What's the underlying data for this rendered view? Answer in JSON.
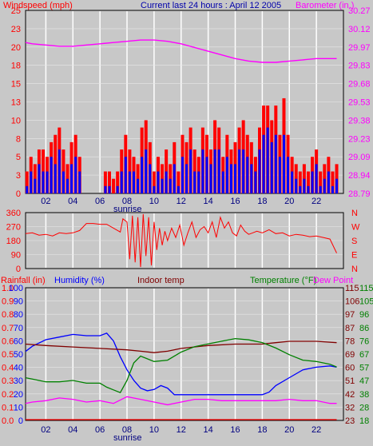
{
  "header": {
    "left_label": "Windspeed (mph)",
    "center_label": "Current last 24 hours : April 12 2005",
    "right_label": "Barometer (in.)"
  },
  "bottom_header": {
    "rainfall_label": "Rainfall (in)",
    "humidity_label": "Humidity (%)",
    "indoor_label": "Indoor temp",
    "temperature_label": "Temperature (°F)",
    "dewpoint_label": "Dew Point"
  },
  "x_axis": {
    "hour_ticks": [
      "02",
      "04",
      "06",
      "08",
      "10",
      "12",
      "14",
      "16",
      "18",
      "20",
      "22"
    ],
    "sunrise_label": "sunrise"
  },
  "colors": {
    "background": "#c8c8c8",
    "wind_avg": "#0000ff",
    "wind_gust": "#ff0000",
    "barometer": "#ff00ff",
    "direction": "#ff0000",
    "humidity": "#0000ff",
    "indoor": "#800000",
    "temperature": "#008000",
    "dewpoint": "#ff00ff",
    "rain": "#ff0000"
  },
  "chart_data": [
    {
      "type": "bar",
      "name_id": "wind-barometer",
      "x_unit": "hour",
      "xlim": [
        0.5,
        24
      ],
      "y_left": {
        "label": "Windspeed (mph)",
        "ticks": [
          "0",
          "3",
          "5",
          "8",
          "10",
          "13",
          "15",
          "18",
          "20",
          "23",
          "25"
        ],
        "ylim": [
          0,
          25
        ]
      },
      "y_right": {
        "label": "Barometer (in.)",
        "ticks": [
          "28.79",
          "28.94",
          "29.09",
          "29.23",
          "29.38",
          "29.53",
          "29.68",
          "29.83",
          "29.97",
          "30.12",
          "30.27"
        ],
        "ylim": [
          28.79,
          30.27
        ]
      },
      "series": [
        {
          "name": "gust",
          "hours": [
            0.6,
            0.9,
            1.2,
            1.5,
            1.8,
            2.1,
            2.4,
            2.7,
            3.0,
            3.3,
            3.6,
            3.9,
            4.2,
            4.5,
            6.4,
            6.7,
            7.0,
            7.3,
            7.6,
            7.9,
            8.2,
            8.5,
            8.8,
            9.1,
            9.4,
            9.7,
            10.0,
            10.3,
            10.6,
            10.9,
            11.2,
            11.5,
            11.8,
            12.1,
            12.4,
            12.7,
            13.0,
            13.3,
            13.6,
            13.9,
            14.2,
            14.5,
            14.8,
            15.1,
            15.4,
            15.7,
            16.0,
            16.3,
            16.6,
            16.9,
            17.2,
            17.5,
            17.8,
            18.1,
            18.4,
            18.7,
            19.0,
            19.3,
            19.6,
            19.9,
            20.2,
            20.5,
            20.8,
            21.1,
            21.4,
            21.7,
            22.0,
            22.3,
            22.6,
            22.9,
            23.2,
            23.5
          ],
          "values": [
            3,
            5,
            4,
            6,
            6,
            5,
            7,
            8,
            9,
            6,
            4,
            7,
            8,
            5,
            3,
            3,
            2,
            3,
            6,
            8,
            6,
            5,
            4,
            9,
            10,
            7,
            3,
            5,
            4,
            6,
            4,
            7,
            3,
            8,
            7,
            9,
            6,
            5,
            9,
            8,
            6,
            10,
            9,
            5,
            8,
            6,
            7,
            9,
            10,
            8,
            7,
            5,
            9,
            12,
            12,
            10,
            12,
            8,
            13,
            8,
            5,
            4,
            3,
            4,
            3,
            5,
            6,
            3,
            4,
            5,
            3,
            4
          ]
        },
        {
          "name": "average",
          "hours": [
            0.6,
            0.9,
            1.2,
            1.5,
            1.8,
            2.1,
            2.4,
            2.7,
            3.0,
            3.3,
            3.6,
            3.9,
            4.2,
            4.5,
            6.4,
            6.7,
            7.0,
            7.3,
            7.6,
            7.9,
            8.2,
            8.5,
            8.8,
            9.1,
            9.4,
            9.7,
            10.0,
            10.3,
            10.6,
            10.9,
            11.2,
            11.5,
            11.8,
            12.1,
            12.4,
            12.7,
            13.0,
            13.3,
            13.6,
            13.9,
            14.2,
            14.5,
            14.8,
            15.1,
            15.4,
            15.7,
            16.0,
            16.3,
            16.6,
            16.9,
            17.2,
            17.5,
            17.8,
            18.1,
            18.4,
            18.7,
            19.0,
            19.3,
            19.6,
            19.9,
            20.2,
            20.5,
            20.8,
            21.1,
            21.4,
            21.7,
            22.0,
            22.3,
            22.6,
            22.9,
            23.2,
            23.5
          ],
          "values": [
            1,
            3,
            2,
            4,
            3,
            3,
            5,
            4,
            6,
            3,
            2,
            4,
            5,
            3,
            1,
            1,
            0,
            1,
            3,
            5,
            3,
            3,
            2,
            5,
            6,
            4,
            1,
            3,
            2,
            3,
            2,
            4,
            1,
            5,
            4,
            6,
            3,
            3,
            6,
            5,
            4,
            6,
            6,
            3,
            5,
            4,
            4,
            6,
            6,
            5,
            4,
            3,
            6,
            8,
            9,
            7,
            8,
            5,
            8,
            5,
            3,
            2,
            1,
            2,
            1,
            3,
            4,
            1,
            2,
            3,
            1,
            2
          ]
        },
        {
          "name": "barometer",
          "hours": [
            0.5,
            1,
            2,
            3,
            4,
            5,
            6,
            7,
            8,
            9,
            10,
            11,
            12,
            13,
            14,
            15,
            16,
            17,
            18,
            19,
            20,
            21,
            22,
            23,
            23.5
          ],
          "values": [
            30.01,
            30.0,
            29.99,
            29.98,
            29.98,
            29.99,
            30.0,
            30.01,
            30.02,
            30.03,
            30.03,
            30.02,
            30.0,
            29.97,
            29.94,
            29.91,
            29.88,
            29.86,
            29.85,
            29.85,
            29.86,
            29.87,
            29.88,
            29.88,
            29.88
          ]
        }
      ]
    },
    {
      "type": "line",
      "name_id": "wind-direction",
      "x_unit": "hour",
      "xlim": [
        0.5,
        24
      ],
      "y_left": {
        "ticks": [
          "0",
          "90",
          "180",
          "270",
          "360"
        ],
        "ylim": [
          0,
          360
        ]
      },
      "y_right": {
        "ticks": [
          "N",
          "W",
          "S",
          "E",
          "N"
        ]
      },
      "series": [
        {
          "name": "direction",
          "hours": [
            0.5,
            1,
            1.5,
            2,
            2.5,
            3,
            3.5,
            4,
            4.5,
            5,
            5.5,
            6,
            6.5,
            7,
            7.5,
            7.7,
            8,
            8.2,
            8.4,
            8.6,
            8.8,
            9.0,
            9.2,
            9.4,
            9.6,
            9.8,
            10.0,
            10.2,
            10.4,
            10.6,
            10.8,
            11,
            11.3,
            11.6,
            11.9,
            12.2,
            12.5,
            12.8,
            13.1,
            13.4,
            13.7,
            14,
            14.3,
            14.6,
            14.9,
            15.2,
            15.5,
            15.8,
            16.1,
            16.4,
            16.7,
            17,
            17.3,
            17.6,
            18,
            18.5,
            19,
            19.5,
            20,
            20.5,
            21,
            21.5,
            22,
            22.5,
            23,
            23.5
          ],
          "values": [
            225,
            230,
            215,
            220,
            210,
            230,
            225,
            230,
            245,
            290,
            290,
            285,
            285,
            260,
            235,
            320,
            300,
            60,
            340,
            40,
            330,
            10,
            350,
            80,
            330,
            20,
            300,
            120,
            260,
            150,
            240,
            180,
            260,
            200,
            280,
            150,
            230,
            300,
            200,
            250,
            270,
            230,
            300,
            200,
            330,
            260,
            300,
            230,
            210,
            280,
            240,
            220,
            230,
            240,
            230,
            250,
            225,
            230,
            210,
            220,
            215,
            205,
            210,
            200,
            190,
            100
          ]
        }
      ]
    },
    {
      "type": "line",
      "name_id": "temp-humidity",
      "x_unit": "hour",
      "xlim": [
        0.5,
        24
      ],
      "axes": {
        "rain": {
          "label": "Rainfall (in)",
          "ticks": [
            "0.0",
            "0.1",
            "0.2",
            "0.3",
            "0.4",
            "0.5",
            "0.6",
            "0.7",
            "0.8",
            "0.9",
            "1.0"
          ],
          "ylim": [
            0,
            1
          ]
        },
        "humidity": {
          "label": "Humidity (%)",
          "ticks": [
            "0",
            "10",
            "20",
            "30",
            "40",
            "50",
            "60",
            "70",
            "80",
            "90",
            "100"
          ],
          "ylim": [
            0,
            100
          ]
        },
        "indoor": {
          "label": "Indoor temp",
          "ticks": [
            "23",
            "32",
            "42",
            "51",
            "60",
            "69",
            "78",
            "87",
            "97",
            "106",
            "115"
          ],
          "ylim": [
            23,
            115
          ]
        },
        "temperature": {
          "label": "Temperature (°F)",
          "ticks": [
            "18",
            "28",
            "38",
            "47",
            "57",
            "67",
            "76",
            "86",
            "96",
            "105",
            "115"
          ],
          "ylim": [
            18,
            115
          ]
        }
      },
      "series": [
        {
          "name": "Humidity (%)",
          "hours": [
            0.5,
            1,
            2,
            3,
            4,
            5,
            6,
            6.5,
            7,
            7.5,
            8,
            8.5,
            9,
            9.5,
            10,
            10.5,
            11,
            11.5,
            12,
            13,
            14,
            15,
            16,
            17,
            18,
            18.5,
            19,
            20,
            21,
            22,
            23,
            23.5
          ],
          "values": [
            52,
            56,
            61,
            63,
            65,
            64,
            64,
            66,
            60,
            48,
            38,
            30,
            24,
            22,
            23,
            26,
            24,
            19,
            19,
            19,
            19,
            19,
            19,
            19,
            19,
            21,
            26,
            32,
            38,
            40,
            41,
            40
          ]
        },
        {
          "name": "Indoor temp",
          "hours": [
            0.5,
            2,
            4,
            6,
            8,
            9,
            10,
            11,
            12,
            14,
            16,
            18,
            19,
            20,
            21,
            22,
            23.5
          ],
          "values": [
            76,
            75,
            74,
            73,
            72,
            71,
            70,
            71,
            73,
            75,
            76,
            76,
            77,
            78,
            78,
            78,
            77
          ]
        },
        {
          "name": "Temperature (°F)",
          "hours": [
            0.5,
            1,
            2,
            3,
            4,
            5,
            6,
            6.5,
            7,
            7.5,
            8,
            8.5,
            9,
            9.5,
            10,
            11,
            12,
            13,
            14,
            15,
            16,
            17,
            18,
            19,
            20,
            21,
            22,
            23,
            23.5
          ],
          "values": [
            49,
            48,
            46,
            46,
            47,
            45,
            45,
            42,
            40,
            38,
            47,
            60,
            65,
            63,
            61,
            62,
            68,
            72,
            74,
            76,
            78,
            77,
            75,
            71,
            66,
            62,
            61,
            59,
            57
          ]
        },
        {
          "name": "Dew Point",
          "hours": [
            0.5,
            1,
            2,
            3,
            4,
            5,
            6,
            7,
            8,
            9,
            10,
            11,
            12,
            13,
            14,
            15,
            16,
            17,
            18,
            19,
            20,
            21,
            22,
            23,
            23.5
          ],
          "values": [
            30,
            31,
            32,
            34,
            33,
            31,
            32,
            30,
            35,
            33,
            31,
            29,
            31,
            33,
            33,
            32,
            32,
            32,
            32,
            32,
            33,
            32,
            32,
            30,
            30
          ]
        },
        {
          "name": "Rainfall (in)",
          "hours": [
            0.5,
            23.5
          ],
          "values": [
            0.0,
            0.0
          ]
        }
      ]
    }
  ]
}
